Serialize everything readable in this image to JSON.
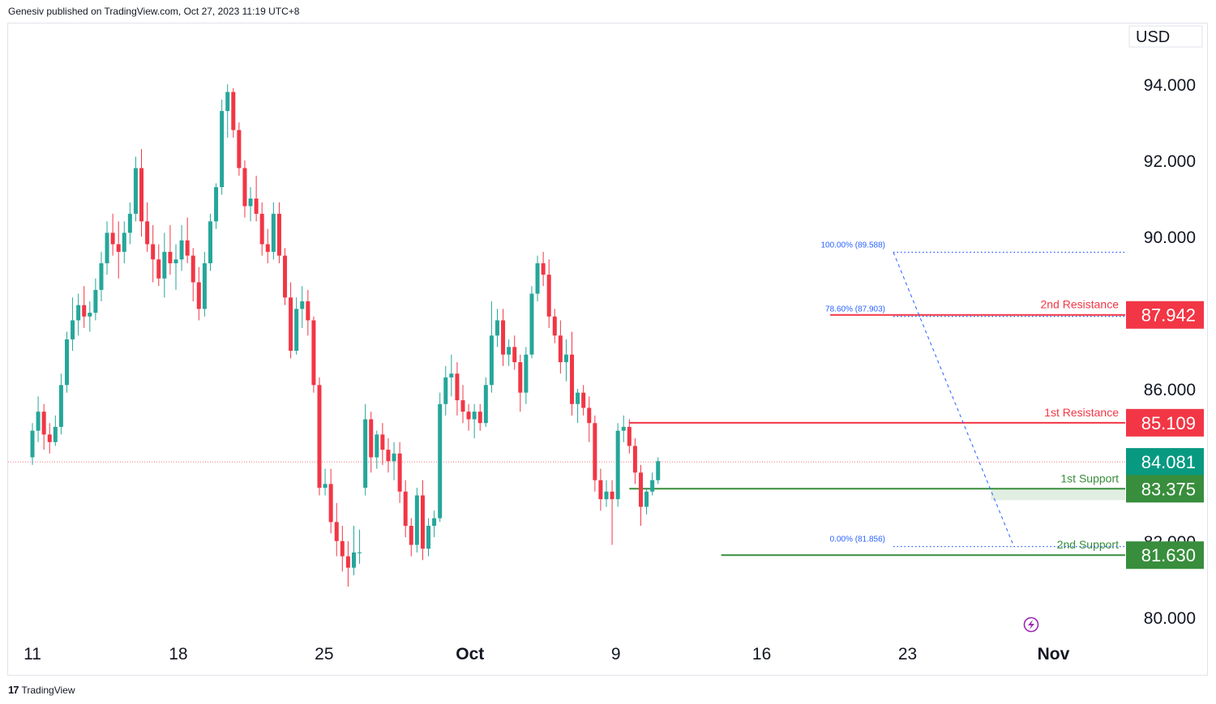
{
  "header": {
    "publisher_text": "Genesiv published on TradingView.com, Oct 27, 2023 11:19 UTC+8"
  },
  "footer": {
    "logo_text": "17",
    "brand": "TradingView"
  },
  "colors": {
    "up": "#26a69a",
    "down": "#f23645",
    "resistance": "#f23645",
    "support": "#388e3c",
    "last": "#089981",
    "fib": "#2962ff"
  },
  "chart_data": {
    "type": "candlestick",
    "currency_label": "USD",
    "y_axis": {
      "ylim": [
        79.4,
        95.6
      ],
      "ticks": [
        "94.000",
        "92.000",
        "90.000",
        "86.000",
        "82.000",
        "80.000"
      ],
      "tick_values": [
        94,
        92,
        90,
        86,
        82,
        80
      ]
    },
    "x_axis": {
      "labels": [
        "11",
        "18",
        "25",
        "Oct",
        "9",
        "16",
        "23",
        "Nov"
      ],
      "label_bar_index": [
        0,
        26,
        52,
        78,
        104,
        130,
        156,
        182
      ]
    },
    "candles": [
      [
        84.2,
        85.1,
        84.0,
        84.9
      ],
      [
        84.9,
        85.8,
        84.6,
        85.4
      ],
      [
        85.4,
        85.6,
        84.4,
        84.8
      ],
      [
        84.8,
        85.1,
        84.3,
        84.6
      ],
      [
        84.6,
        85.3,
        84.5,
        85.0
      ],
      [
        85.0,
        86.4,
        84.8,
        86.1
      ],
      [
        86.1,
        87.5,
        85.9,
        87.3
      ],
      [
        87.3,
        88.4,
        87.0,
        87.8
      ],
      [
        87.8,
        88.5,
        87.4,
        88.2
      ],
      [
        88.2,
        88.7,
        87.6,
        87.9
      ],
      [
        87.9,
        88.3,
        87.5,
        88.0
      ],
      [
        88.0,
        88.9,
        87.8,
        88.6
      ],
      [
        88.6,
        89.6,
        88.3,
        89.3
      ],
      [
        89.3,
        90.4,
        89.0,
        90.1
      ],
      [
        90.1,
        90.6,
        89.5,
        89.8
      ],
      [
        89.8,
        90.4,
        88.9,
        89.6
      ],
      [
        89.6,
        90.4,
        89.3,
        90.1
      ],
      [
        90.1,
        90.9,
        89.8,
        90.6
      ],
      [
        90.6,
        92.1,
        90.4,
        91.8
      ],
      [
        91.8,
        92.3,
        90.0,
        90.4
      ],
      [
        90.4,
        90.9,
        89.6,
        89.8
      ],
      [
        89.8,
        90.3,
        88.8,
        89.4
      ],
      [
        89.4,
        89.8,
        88.7,
        88.9
      ],
      [
        88.9,
        90.1,
        88.4,
        89.6
      ],
      [
        89.6,
        90.3,
        89.0,
        89.3
      ],
      [
        89.3,
        89.8,
        88.6,
        89.4
      ],
      [
        89.4,
        90.3,
        89.1,
        89.9
      ],
      [
        89.9,
        90.5,
        89.3,
        89.5
      ],
      [
        89.5,
        89.7,
        88.3,
        88.8
      ],
      [
        88.8,
        89.2,
        87.8,
        88.1
      ],
      [
        88.1,
        89.6,
        87.9,
        89.3
      ],
      [
        89.3,
        90.6,
        89.1,
        90.4
      ],
      [
        90.4,
        91.4,
        90.2,
        91.3
      ],
      [
        91.3,
        93.6,
        91.1,
        93.3
      ],
      [
        93.3,
        94.0,
        92.6,
        93.8
      ],
      [
        93.8,
        93.9,
        92.6,
        92.8
      ],
      [
        92.8,
        93.0,
        91.6,
        91.8
      ],
      [
        91.8,
        92.0,
        90.5,
        90.8
      ],
      [
        90.8,
        91.3,
        90.4,
        91.0
      ],
      [
        91.0,
        91.6,
        90.4,
        90.6
      ],
      [
        90.6,
        90.9,
        89.5,
        89.8
      ],
      [
        89.8,
        90.2,
        89.3,
        89.6
      ],
      [
        89.6,
        90.9,
        89.4,
        90.6
      ],
      [
        90.6,
        90.9,
        89.3,
        89.5
      ],
      [
        89.5,
        89.7,
        88.2,
        88.4
      ],
      [
        88.4,
        88.8,
        86.8,
        87.0
      ],
      [
        87.0,
        88.4,
        86.9,
        88.1
      ],
      [
        88.1,
        88.7,
        87.6,
        88.3
      ],
      [
        88.3,
        88.6,
        87.4,
        87.8
      ],
      [
        87.8,
        87.9,
        85.9,
        86.1
      ],
      [
        86.1,
        86.3,
        83.2,
        83.4
      ],
      [
        83.4,
        83.9,
        83.2,
        83.5
      ],
      [
        83.5,
        83.9,
        82.2,
        82.5
      ],
      [
        82.5,
        83.0,
        81.6,
        82.0
      ],
      [
        82.0,
        82.4,
        81.2,
        81.6
      ],
      [
        81.6,
        82.0,
        80.8,
        81.3
      ],
      [
        81.3,
        82.4,
        81.1,
        81.7
      ],
      [
        81.7,
        82.3,
        81.4,
        81.7
      ],
      [
        83.4,
        85.6,
        83.2,
        85.2
      ],
      [
        85.2,
        85.4,
        83.8,
        84.2
      ],
      [
        84.2,
        84.9,
        83.9,
        84.8
      ],
      [
        84.8,
        85.1,
        84.0,
        84.4
      ],
      [
        84.4,
        84.7,
        83.8,
        84.1
      ],
      [
        84.1,
        84.6,
        83.6,
        84.3
      ],
      [
        84.3,
        84.6,
        83.0,
        83.3
      ],
      [
        83.3,
        83.6,
        82.1,
        82.4
      ],
      [
        82.4,
        82.6,
        81.6,
        81.9
      ],
      [
        81.9,
        83.4,
        81.7,
        83.2
      ],
      [
        83.2,
        83.6,
        81.5,
        81.8
      ],
      [
        81.8,
        82.6,
        81.6,
        82.4
      ],
      [
        82.4,
        82.8,
        82.1,
        82.6
      ],
      [
        82.6,
        85.9,
        82.5,
        85.6
      ],
      [
        85.6,
        86.6,
        85.3,
        86.3
      ],
      [
        86.3,
        86.9,
        85.8,
        86.4
      ],
      [
        86.4,
        86.7,
        85.3,
        85.7
      ],
      [
        85.7,
        86.1,
        85.1,
        85.4
      ],
      [
        85.4,
        85.6,
        84.9,
        85.2
      ],
      [
        85.2,
        85.6,
        84.7,
        85.4
      ],
      [
        85.4,
        85.6,
        84.9,
        85.1
      ],
      [
        85.1,
        86.3,
        85.0,
        86.1
      ],
      [
        86.1,
        88.3,
        85.9,
        87.4
      ],
      [
        87.4,
        88.1,
        87.1,
        87.8
      ],
      [
        87.8,
        88.1,
        86.6,
        86.9
      ],
      [
        86.9,
        87.3,
        86.6,
        87.1
      ],
      [
        87.1,
        87.4,
        86.5,
        86.7
      ],
      [
        86.7,
        86.9,
        85.4,
        85.9
      ],
      [
        85.9,
        87.1,
        85.6,
        86.9
      ],
      [
        86.9,
        88.7,
        86.8,
        88.5
      ],
      [
        88.5,
        89.5,
        88.3,
        89.3
      ],
      [
        89.3,
        89.6,
        88.7,
        89.0
      ],
      [
        89.0,
        89.4,
        87.6,
        87.9
      ],
      [
        87.9,
        88.1,
        87.2,
        87.4
      ],
      [
        87.4,
        87.8,
        86.4,
        86.7
      ],
      [
        86.7,
        87.3,
        86.2,
        86.9
      ],
      [
        86.9,
        87.5,
        85.3,
        85.6
      ],
      [
        85.6,
        86.0,
        85.1,
        85.9
      ],
      [
        85.9,
        86.1,
        85.3,
        85.5
      ],
      [
        85.5,
        85.8,
        84.6,
        85.1
      ],
      [
        85.1,
        85.3,
        83.3,
        83.6
      ],
      [
        83.6,
        83.9,
        82.8,
        83.1
      ],
      [
        83.1,
        83.6,
        82.9,
        83.3
      ],
      [
        83.3,
        83.6,
        81.9,
        83.1
      ],
      [
        83.1,
        85.1,
        82.9,
        84.9
      ],
      [
        84.9,
        85.3,
        84.6,
        85.0
      ],
      [
        85.0,
        85.2,
        84.3,
        84.5
      ],
      [
        84.5,
        84.7,
        83.5,
        83.8
      ],
      [
        83.8,
        84.0,
        82.4,
        82.9
      ],
      [
        82.9,
        83.4,
        82.7,
        83.3
      ],
      [
        83.3,
        83.8,
        83.2,
        83.6
      ],
      [
        83.6,
        84.2,
        83.5,
        84.1
      ]
    ],
    "reference_lines": {
      "last_price": {
        "value": 84.081,
        "label": "84.081"
      },
      "resistances": [
        {
          "name": "2nd Resistance",
          "value": 87.942,
          "label": "87.942"
        },
        {
          "name": "1st Resistance",
          "value": 85.109,
          "label": "85.109"
        }
      ],
      "supports": [
        {
          "name": "1st Support",
          "value": 83.375,
          "label": "83.375"
        },
        {
          "name": "2nd Support",
          "value": 81.63,
          "label": "81.630"
        }
      ],
      "fibonacci": [
        {
          "label": "100.00% (89.588)",
          "value": 89.588
        },
        {
          "label": "78.60% (87.903)",
          "value": 87.903
        },
        {
          "label": "0.00% (81.856)",
          "value": 81.856
        }
      ]
    }
  }
}
